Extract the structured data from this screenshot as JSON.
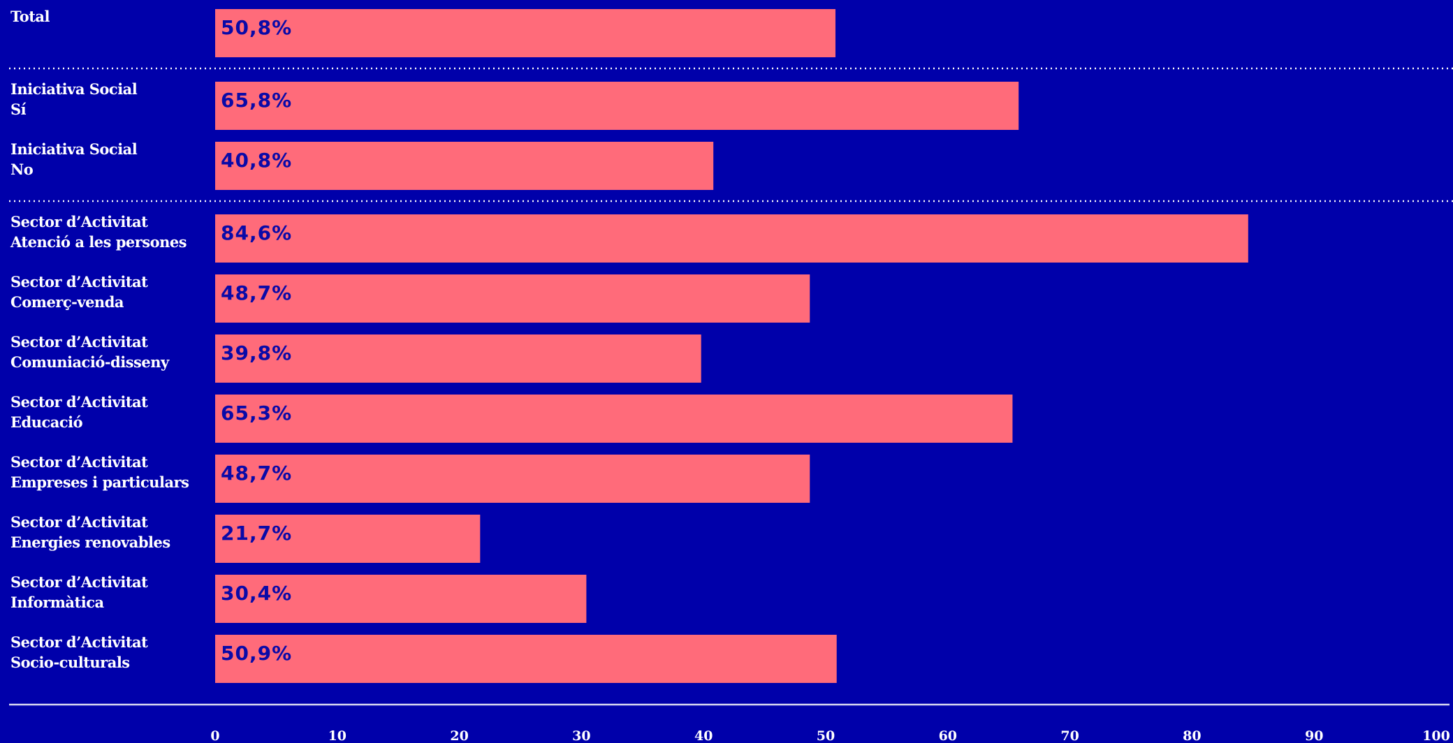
{
  "chart_data": {
    "type": "bar",
    "categories": [
      [
        "Total"
      ],
      [
        "Iniciativa Social",
        "Sí"
      ],
      [
        "Iniciativa Social",
        "No"
      ],
      [
        "Sector d’Activitat",
        "Atenció a les persones"
      ],
      [
        "Sector d’Activitat",
        "Comerç-venda"
      ],
      [
        "Sector d’Activitat",
        "Comuniació-disseny"
      ],
      [
        "Sector d’Activitat",
        "Educació"
      ],
      [
        "Sector d’Activitat",
        "Empreses i particulars"
      ],
      [
        "Sector d’Activitat",
        "Energies renovables"
      ],
      [
        "Sector d’Activitat",
        "Informàtica"
      ],
      [
        "Sector d’Activitat",
        "Socio-culturals"
      ]
    ],
    "values": [
      50.8,
      65.8,
      40.8,
      84.6,
      48.7,
      39.8,
      65.3,
      48.7,
      21.7,
      30.4,
      50.9
    ],
    "value_labels": [
      "50,8%",
      "65,8%",
      "40,8%",
      "84,6%",
      "48,7%",
      "39,8%",
      "65,3%",
      "48,7%",
      "21,7%",
      "30,4%",
      "50,9%"
    ],
    "color": "#ff6b7a",
    "xlim": [
      0,
      100
    ],
    "xticks": [
      0,
      10,
      20,
      30,
      40,
      50,
      60,
      70,
      80,
      90,
      100
    ]
  }
}
